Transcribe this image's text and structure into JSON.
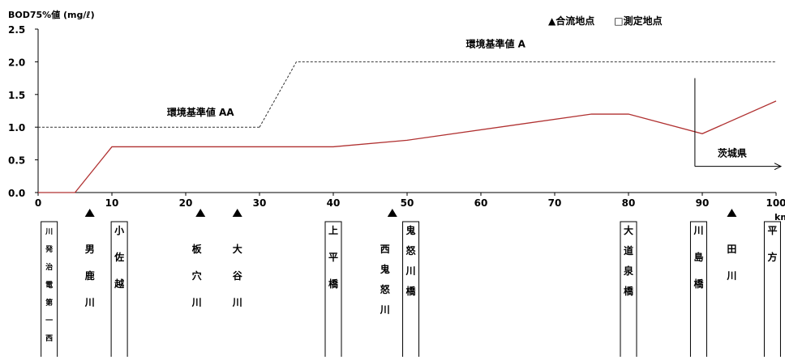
{
  "chart_data": {
    "type": "line",
    "ylabel": "BOD75%値 (mg/ℓ)",
    "xlabel": "km",
    "xlim": [
      0,
      100
    ],
    "ylim": [
      0,
      2.5
    ],
    "x_ticks": [
      0,
      10,
      20,
      30,
      40,
      50,
      60,
      70,
      80,
      90,
      100
    ],
    "x_tick_labels": [
      "0",
      "10",
      "20",
      "30",
      "40",
      "50",
      "60",
      "70",
      "80",
      "90",
      "100"
    ],
    "y_ticks": [
      0,
      0.5,
      1.0,
      1.5,
      2.0,
      2.5
    ],
    "y_tick_labels": [
      "0.0",
      "0.5",
      "1.0",
      "1.5",
      "2.0",
      "2.5"
    ],
    "grid": false,
    "legend_text": "▲合流地点　　□測定地点",
    "legend_placement": "top-right",
    "series": [
      {
        "color": "#b03030",
        "style": "solid",
        "x": [
          0,
          5,
          10,
          40,
          50,
          75,
          80,
          90,
          100
        ],
        "values": [
          0,
          0,
          0.7,
          0.7,
          0.8,
          1.2,
          1.2,
          0.9,
          1.4
        ]
      },
      {
        "name": "環境基準値 AA",
        "color": "#333333",
        "style": "dashed",
        "x": [
          0,
          30
        ],
        "values": [
          1.0,
          1.0
        ]
      },
      {
        "name": "環境基準値 A",
        "color": "#333333",
        "style": "dashed",
        "x": [
          30,
          35,
          100
        ],
        "values": [
          1.0,
          2.0,
          2.0
        ]
      }
    ],
    "annotations": [
      {
        "text": "環境基準値 AA",
        "x": 22,
        "y": 1.1
      },
      {
        "text": "環境基準値 A",
        "x": 62,
        "y": 2.15
      }
    ],
    "prefecture_boundary": {
      "x": 89,
      "label": "茨城県",
      "y_top": 1.75,
      "y_bottom": 0.4
    },
    "confluence_markers": [
      7,
      22,
      27,
      48,
      94
    ],
    "stations": [
      {
        "x": 1.5,
        "label": "川発治電第一西",
        "boxed": true,
        "small": true
      },
      {
        "x": 7,
        "label": "男鹿川",
        "boxed": false
      },
      {
        "x": 11,
        "label": "小佐越",
        "boxed": true
      },
      {
        "x": 21.5,
        "label": "板穴川",
        "boxed": false
      },
      {
        "x": 27,
        "label": "大谷川",
        "boxed": false
      },
      {
        "x": 40,
        "label": "上平橋",
        "boxed": true
      },
      {
        "x": 47,
        "label": "西鬼怒川",
        "boxed": false
      },
      {
        "x": 50.5,
        "label": "鬼怒川橋",
        "boxed": true
      },
      {
        "x": 80,
        "label": "大道泉橋",
        "boxed": true
      },
      {
        "x": 89.5,
        "label": "川島橋",
        "boxed": true
      },
      {
        "x": 94,
        "label": "田川",
        "boxed": false
      },
      {
        "x": 99.5,
        "label": "平方",
        "boxed": true
      }
    ]
  }
}
